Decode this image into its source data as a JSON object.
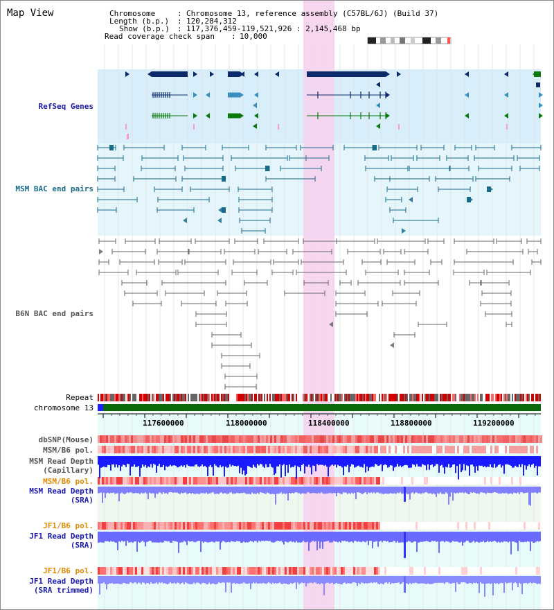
{
  "view": {
    "title": "Map View",
    "info_keys": [
      "Chromosome",
      "Length (b.p.)",
      "Show (b.p.)",
      "Read coverage check span"
    ],
    "info_values": [
      "Chromosome 13, reference assembly (C57BL/6J) (Build 37)",
      "120,284,312",
      "117,376,459-119,521,926 : 2,145,468 bp",
      "10,000"
    ]
  },
  "tracks": {
    "refseq": "RefSeq Genes",
    "msm_bac": "MSM BAC end pairs",
    "b6n_bac": "B6N BAC end pairs",
    "repeat": "Repeat",
    "chromosome": "chromosome 13",
    "dbsnp": "dbSNP(Mouse)",
    "msm_b6_pol_1": "MSM/B6 pol.",
    "msm_depth_cap_1": "MSM Read Depth",
    "msm_depth_cap_2": "(Capillary)",
    "msm_b6_pol_2": "MSM/B6 pol.",
    "msm_depth_sra_1": "MSM Read Depth",
    "msm_depth_sra_2": "(SRA)",
    "jf1_b6_pol_1": "JF1/B6 pol.",
    "jf1_depth_sra_1": "JF1 Read Depth",
    "jf1_depth_sra_2": "(SRA)",
    "jf1_b6_pol_2": "JF1/B6 pol.",
    "jf1_depth_trim_1": "JF1 Read Depth",
    "jf1_depth_trim_2": "(SRA trimmed)"
  },
  "axis": {
    "ticks": [
      "117600000",
      "118000000",
      "118400000",
      "118800000",
      "119200000"
    ]
  },
  "colors": {
    "refseq_bg": "#d8eefa",
    "bac_bg": "#e4f6fb",
    "highlight": "#f6d3ee",
    "gene_dark": "#0c2a6a",
    "gene_mid": "#3a8fbf",
    "gene_green": "#0a7a0a",
    "msm_line": "#1a6a8a",
    "b6n_line": "#666666",
    "chrom_bar": "#0a6a0a",
    "depth_blue": "#2020ff",
    "depth_light": "#8080ff",
    "snp_red": "#f04040",
    "label_blue": "#1a1aaa",
    "label_teal": "#1a6a8a",
    "label_orange": "#e08a00",
    "label_gray": "#555555"
  }
}
